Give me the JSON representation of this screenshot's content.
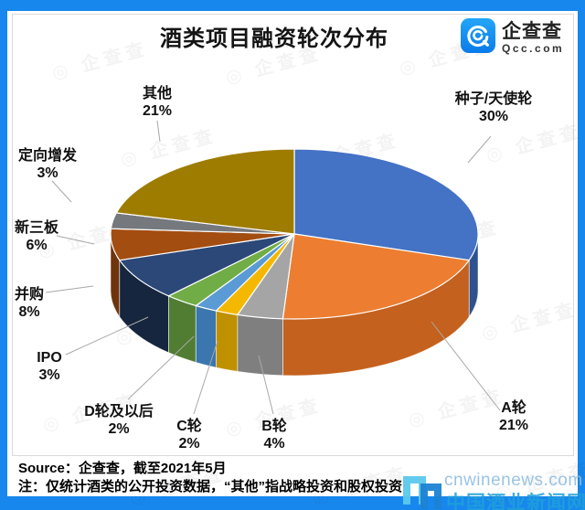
{
  "header": {
    "title": "酒类项目融资轮次分布",
    "logo": {
      "name": "企查查",
      "domain": "Qcc.com"
    }
  },
  "chart_data": {
    "type": "pie",
    "style": "3d",
    "title": "酒类项目融资轮次分布",
    "legend_position": "none",
    "data_labels": "category-name+percentage",
    "start_angle_deg": 0,
    "slices": [
      {
        "label": "种子/天使轮",
        "value": 30,
        "color": "#4472C4",
        "side_color": "#2E5290"
      },
      {
        "label": "A轮",
        "value": 21,
        "color": "#ED7D31",
        "side_color": "#C4611E"
      },
      {
        "label": "B轮",
        "value": 4,
        "color": "#A5A5A5",
        "side_color": "#7F7F7F"
      },
      {
        "label": "C轮",
        "value": 2,
        "color": "#F5B800",
        "side_color": "#BF9000"
      },
      {
        "label": "D轮及以后",
        "value": 2,
        "color": "#5B9BD5",
        "side_color": "#3B76AE"
      },
      {
        "label": "IPO",
        "value": 3,
        "color": "#70AD47",
        "side_color": "#507D32"
      },
      {
        "label": "并购",
        "value": 8,
        "color": "#2B4878",
        "side_color": "#16263F"
      },
      {
        "label": "新三板",
        "value": 6,
        "color": "#A34D11",
        "side_color": "#6E340B"
      },
      {
        "label": "定向增发",
        "value": 3,
        "color": "#75797E",
        "side_color": "#55585C"
      },
      {
        "label": "其他",
        "value": 21,
        "color": "#9E7C00",
        "side_color": "#6B5400"
      }
    ]
  },
  "footer": {
    "source": "Source：企查查，截至2021年5月",
    "note": "注：仅统计酒类的公开投资数据，“其他”指战略投资和股权投资"
  },
  "watermark": {
    "tile_text": "◎ 企查查",
    "site_text": "cnwinenews.com",
    "site_name": "中国酒业新闻网"
  },
  "frame": {
    "border_color": "#1787EE"
  }
}
